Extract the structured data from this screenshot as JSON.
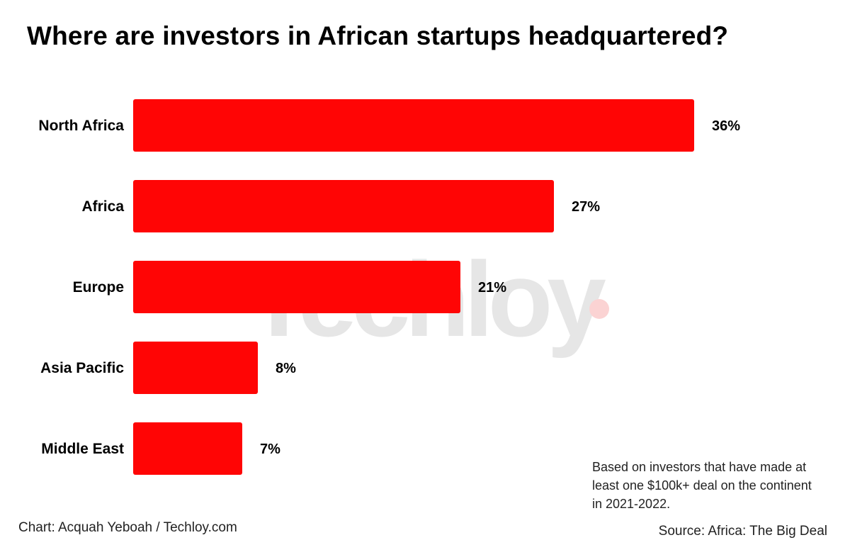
{
  "title": "Where are investors in African startups headquartered?",
  "watermark": "Techloy",
  "note_lines": [
    "Based on investors that have made at",
    "least one $100k+ deal on the continent",
    "in 2021-2022."
  ],
  "credit": "Chart: Acquah Yeboah / Techloy.com",
  "source": "Source: Africa: The Big Deal",
  "colors": {
    "bar": "#ff0000",
    "watermark_text": "#e6e6e6",
    "watermark_dot": "#fbd3d3"
  },
  "chart_data": {
    "type": "bar",
    "orientation": "horizontal",
    "title": "Where are investors in African startups headquartered?",
    "categories": [
      "North Africa",
      "Africa",
      "Europe",
      "Asia Pacific",
      "Middle East"
    ],
    "values": [
      36,
      27,
      21,
      8,
      7
    ],
    "value_labels": [
      "36%",
      "27%",
      "21%",
      "8%",
      "7%"
    ],
    "unit": "%",
    "xlim": [
      0,
      36
    ],
    "grid": false,
    "legend": "none"
  }
}
